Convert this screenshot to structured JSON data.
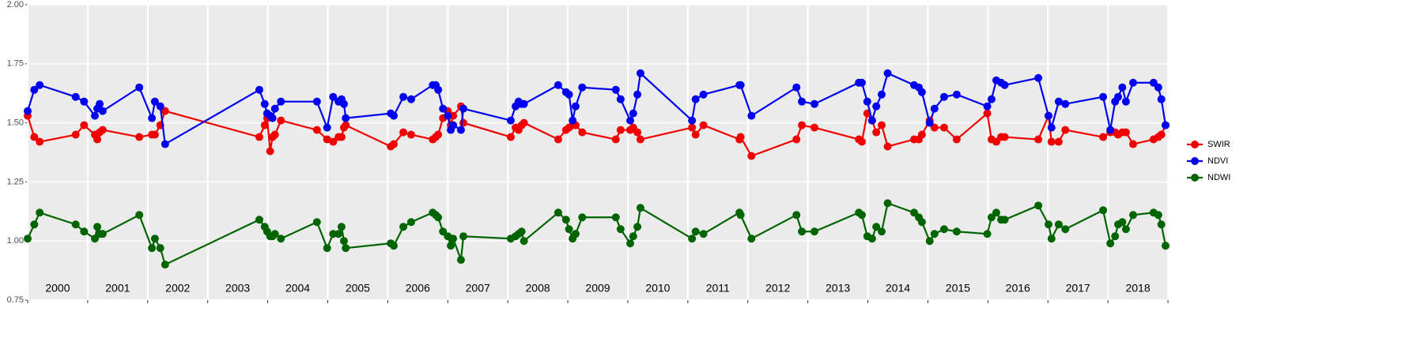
{
  "chart_data": {
    "type": "line",
    "xlim": [
      2000,
      2019
    ],
    "categories": [
      "2000",
      "2001",
      "2002",
      "2003",
      "2004",
      "2005",
      "2006",
      "2007",
      "2008",
      "2009",
      "2010",
      "2011",
      "2012",
      "2013",
      "2014",
      "2015",
      "2016",
      "2017",
      "2018"
    ],
    "ylim": [
      0.75,
      2.0
    ],
    "yticks": [
      0.75,
      {
        "value": 1.0,
        "label": "1.00"
      },
      1.25,
      {
        "value": 1.5,
        "label": "1.50"
      },
      1.75,
      {
        "value": 2.0,
        "label": "2.00"
      }
    ],
    "grid": true,
    "legend": "right",
    "x": [
      2000.0,
      2000.11,
      2000.2,
      2000.8,
      2000.94,
      2001.12,
      2001.16,
      2001.2,
      2001.25,
      2001.86,
      2002.07,
      2002.12,
      2002.21,
      2002.29,
      2003.86,
      2003.95,
      2003.99,
      2004.04,
      2004.08,
      2004.12,
      2004.22,
      2004.82,
      2004.99,
      2005.09,
      2005.18,
      2005.23,
      2005.27,
      2005.3,
      2006.05,
      2006.1,
      2006.26,
      2006.39,
      2006.75,
      2006.8,
      2006.84,
      2006.92,
      2007.0,
      2007.05,
      2007.09,
      2007.22,
      2007.26,
      2008.05,
      2008.13,
      2008.18,
      2008.23,
      2008.27,
      2008.84,
      2008.97,
      2009.02,
      2009.08,
      2009.13,
      2009.24,
      2009.8,
      2009.88,
      2010.04,
      2010.09,
      2010.16,
      2010.21,
      2011.07,
      2011.13,
      2011.26,
      2011.86,
      2011.88,
      2012.06,
      2012.81,
      2012.9,
      2013.11,
      2013.85,
      2013.9,
      2013.99,
      2014.07,
      2014.14,
      2014.23,
      2014.33,
      2014.77,
      2014.85,
      2014.9,
      2015.03,
      2015.11,
      2015.27,
      2015.48,
      2015.99,
      2016.06,
      2016.14,
      2016.22,
      2016.28,
      2016.84,
      2017.01,
      2017.06,
      2017.18,
      2017.29,
      2017.92,
      2018.04,
      2018.12,
      2018.17,
      2018.24,
      2018.3,
      2018.42,
      2018.76,
      2018.84,
      2018.89,
      2018.96
    ],
    "series": [
      {
        "name": "SWIR",
        "color": "#f00000",
        "values": [
          1.53,
          1.44,
          1.42,
          1.45,
          1.49,
          1.45,
          1.43,
          1.46,
          1.47,
          1.44,
          1.45,
          1.45,
          1.49,
          1.55,
          1.44,
          1.49,
          1.52,
          1.38,
          1.44,
          1.45,
          1.51,
          1.47,
          1.43,
          1.42,
          1.44,
          1.44,
          1.48,
          1.49,
          1.4,
          1.41,
          1.46,
          1.45,
          1.43,
          1.44,
          1.45,
          1.52,
          1.55,
          1.49,
          1.53,
          1.57,
          1.5,
          1.44,
          1.48,
          1.47,
          1.49,
          1.5,
          1.43,
          1.47,
          1.48,
          1.49,
          1.49,
          1.46,
          1.43,
          1.47,
          1.47,
          1.48,
          1.46,
          1.43,
          1.48,
          1.45,
          1.49,
          1.43,
          1.44,
          1.36,
          1.43,
          1.49,
          1.48,
          1.43,
          1.42,
          1.54,
          1.51,
          1.46,
          1.49,
          1.4,
          1.43,
          1.43,
          1.45,
          1.51,
          1.48,
          1.48,
          1.43,
          1.54,
          1.43,
          1.42,
          1.44,
          1.44,
          1.43,
          1.53,
          1.42,
          1.42,
          1.47,
          1.44,
          1.46,
          1.46,
          1.45,
          1.46,
          1.46,
          1.41,
          1.43,
          1.44,
          1.45,
          1.49
        ]
      },
      {
        "name": "NDVI",
        "color": "#0000f0",
        "values": [
          1.55,
          1.64,
          1.66,
          1.61,
          1.59,
          1.53,
          1.56,
          1.58,
          1.55,
          1.65,
          1.52,
          1.59,
          1.57,
          1.41,
          1.64,
          1.58,
          1.54,
          1.53,
          1.52,
          1.56,
          1.59,
          1.59,
          1.48,
          1.61,
          1.59,
          1.6,
          1.58,
          1.52,
          1.54,
          1.53,
          1.61,
          1.6,
          1.66,
          1.66,
          1.64,
          1.56,
          1.53,
          1.47,
          1.49,
          1.47,
          1.56,
          1.51,
          1.57,
          1.59,
          1.58,
          1.58,
          1.66,
          1.63,
          1.62,
          1.51,
          1.57,
          1.65,
          1.64,
          1.6,
          1.51,
          1.54,
          1.62,
          1.71,
          1.51,
          1.6,
          1.62,
          1.66,
          1.66,
          1.53,
          1.65,
          1.59,
          1.58,
          1.67,
          1.67,
          1.59,
          1.51,
          1.57,
          1.62,
          1.71,
          1.66,
          1.65,
          1.63,
          1.5,
          1.56,
          1.61,
          1.62,
          1.57,
          1.6,
          1.68,
          1.67,
          1.66,
          1.69,
          1.53,
          1.48,
          1.59,
          1.58,
          1.61,
          1.47,
          1.59,
          1.61,
          1.65,
          1.59,
          1.67,
          1.67,
          1.65,
          1.6,
          1.49
        ]
      },
      {
        "name": "NDWI",
        "color": "#006400",
        "values": [
          1.01,
          1.07,
          1.12,
          1.07,
          1.04,
          1.01,
          1.06,
          1.03,
          1.03,
          1.11,
          0.97,
          1.01,
          0.97,
          0.9,
          1.09,
          1.06,
          1.04,
          1.02,
          1.02,
          1.03,
          1.01,
          1.08,
          0.97,
          1.03,
          1.03,
          1.06,
          1.0,
          0.97,
          0.99,
          0.98,
          1.06,
          1.08,
          1.12,
          1.11,
          1.1,
          1.04,
          1.02,
          0.98,
          1.01,
          0.92,
          1.02,
          1.01,
          1.02,
          1.03,
          1.04,
          1.0,
          1.12,
          1.09,
          1.05,
          1.01,
          1.03,
          1.1,
          1.1,
          1.05,
          0.99,
          1.02,
          1.06,
          1.14,
          1.01,
          1.04,
          1.03,
          1.12,
          1.11,
          1.01,
          1.11,
          1.04,
          1.04,
          1.12,
          1.11,
          1.02,
          1.01,
          1.06,
          1.04,
          1.16,
          1.12,
          1.1,
          1.08,
          1.0,
          1.03,
          1.05,
          1.04,
          1.03,
          1.1,
          1.12,
          1.09,
          1.09,
          1.15,
          1.07,
          1.01,
          1.07,
          1.05,
          1.13,
          0.99,
          1.02,
          1.07,
          1.08,
          1.05,
          1.11,
          1.12,
          1.11,
          1.07,
          0.98
        ]
      }
    ]
  }
}
